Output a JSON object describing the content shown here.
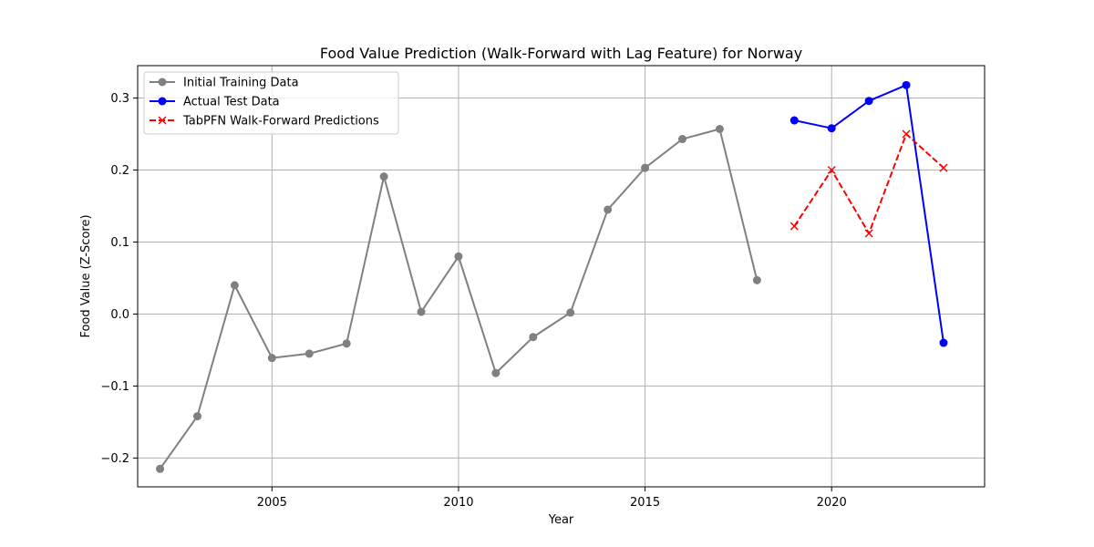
{
  "chart_data": {
    "type": "line",
    "title": "Food Value Prediction (Walk-Forward with Lag Feature) for Norway",
    "xlabel": "Year",
    "ylabel": "Food Value (Z-Score)",
    "xlim": [
      2001.4,
      2024.1
    ],
    "ylim": [
      -0.24,
      0.345
    ],
    "xticks": [
      2005,
      2010,
      2015,
      2020
    ],
    "yticks": [
      -0.2,
      -0.1,
      0.0,
      0.1,
      0.2,
      0.3
    ],
    "ytick_labels": [
      "−0.2",
      "−0.1",
      "0.0",
      "0.1",
      "0.2",
      "0.3"
    ],
    "grid": true,
    "legend_position": "top-left",
    "series": [
      {
        "name": "Initial Training Data",
        "color": "#808080",
        "linestyle": "solid",
        "marker": "circle",
        "x": [
          2002,
          2003,
          2004,
          2005,
          2006,
          2007,
          2008,
          2009,
          2010,
          2011,
          2012,
          2013,
          2014,
          2015,
          2016,
          2017,
          2018
        ],
        "y": [
          -0.215,
          -0.142,
          0.04,
          -0.061,
          -0.055,
          -0.041,
          0.191,
          0.003,
          0.08,
          -0.082,
          -0.032,
          0.002,
          0.145,
          0.203,
          0.243,
          0.257,
          0.047
        ]
      },
      {
        "name": "Actual Test Data",
        "color": "#0000ff",
        "linestyle": "solid",
        "marker": "circle",
        "x": [
          2019,
          2020,
          2021,
          2022,
          2023
        ],
        "y": [
          0.269,
          0.258,
          0.296,
          0.318,
          -0.04
        ]
      },
      {
        "name": "TabPFN Walk-Forward Predictions",
        "color": "#ff0000",
        "linestyle": "dashed",
        "marker": "x",
        "x": [
          2019,
          2020,
          2021,
          2022,
          2023
        ],
        "y": [
          0.122,
          0.2,
          0.112,
          0.25,
          0.203
        ]
      }
    ]
  }
}
